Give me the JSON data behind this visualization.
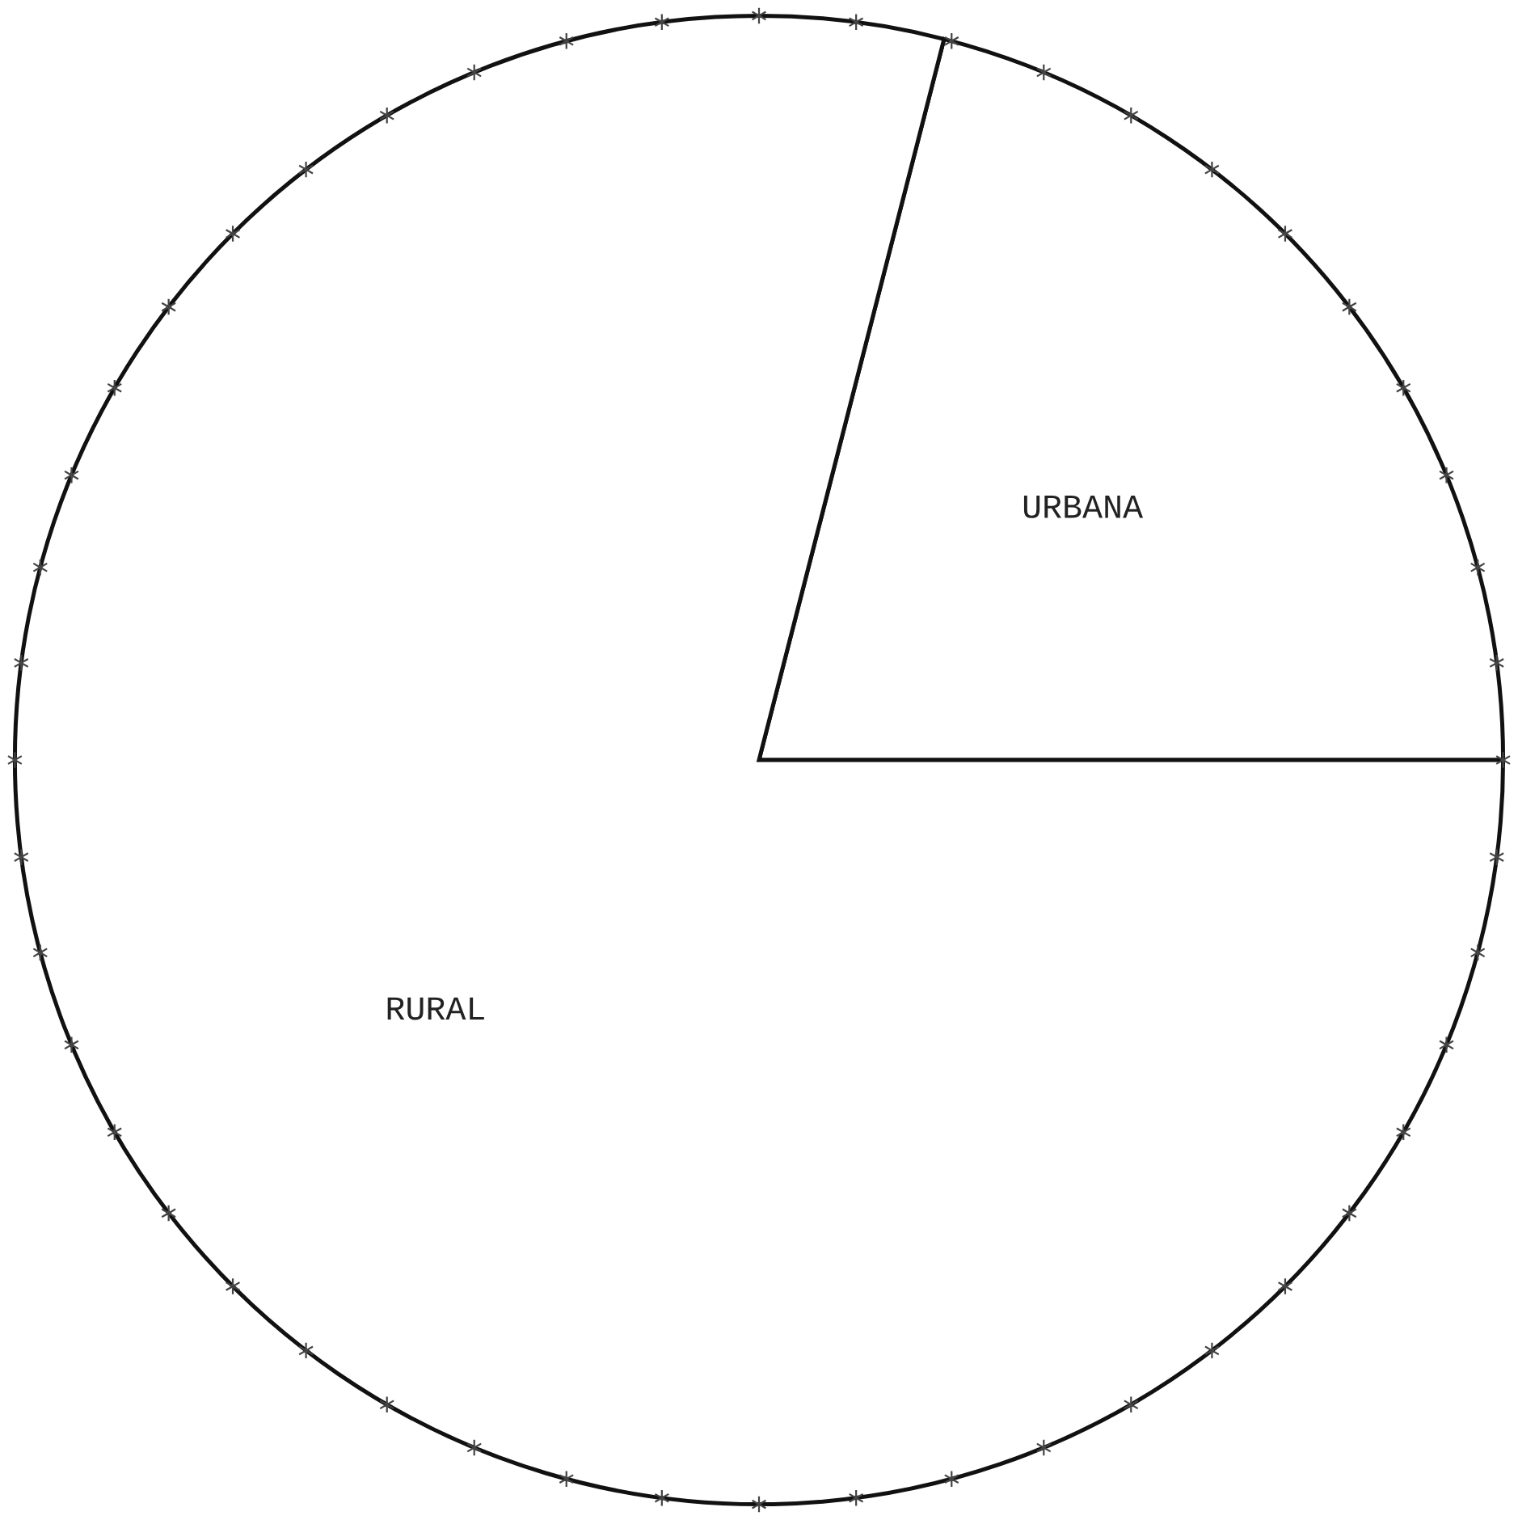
{
  "chart_data": {
    "type": "pie",
    "categories": [
      "URBANA",
      "RURAL"
    ],
    "values": [
      21,
      79
    ],
    "colors": [
      "#ffffff",
      "#ffffff"
    ]
  }
}
